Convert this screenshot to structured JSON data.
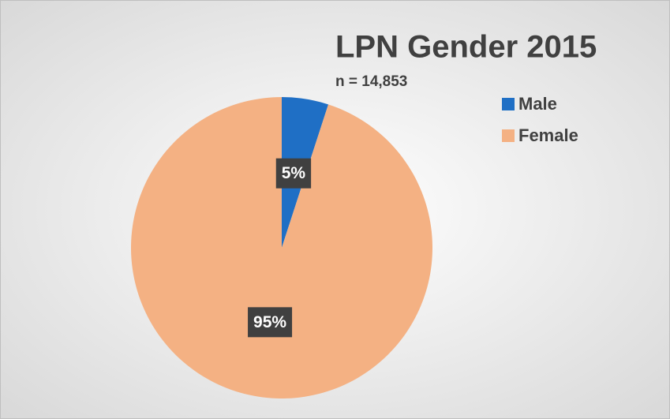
{
  "chart_data": {
    "type": "pie",
    "title": "LPN Gender 2015",
    "subtitle": "n = 14,853",
    "categories": [
      "Male",
      "Female"
    ],
    "values": [
      5,
      95
    ],
    "value_labels": [
      "5%",
      "95%"
    ],
    "colors": [
      "#1f6fc5",
      "#f4b183"
    ],
    "legend": "top-right"
  }
}
